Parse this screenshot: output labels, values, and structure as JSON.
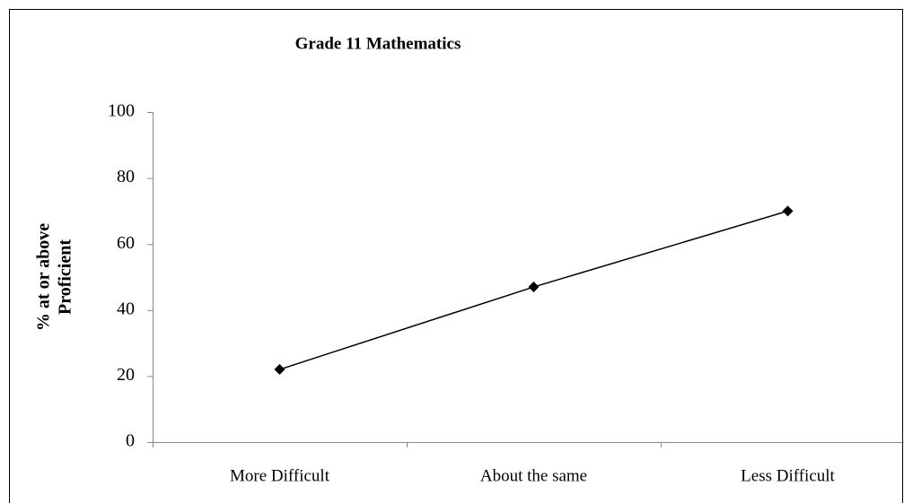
{
  "chart_data": {
    "type": "line",
    "title": "Grade 11 Mathematics",
    "ylabel": [
      "% at or above",
      "Proficient"
    ],
    "categories": [
      "More Difficult",
      "About the same",
      "Less Difficult"
    ],
    "series": [
      {
        "name": "Grade 11 Mathematics",
        "color": "#000000",
        "values": [
          22,
          47,
          70
        ]
      }
    ],
    "ylim": [
      0,
      100
    ],
    "yticks": [
      0,
      20,
      40,
      60,
      80,
      100
    ],
    "grid": false
  }
}
